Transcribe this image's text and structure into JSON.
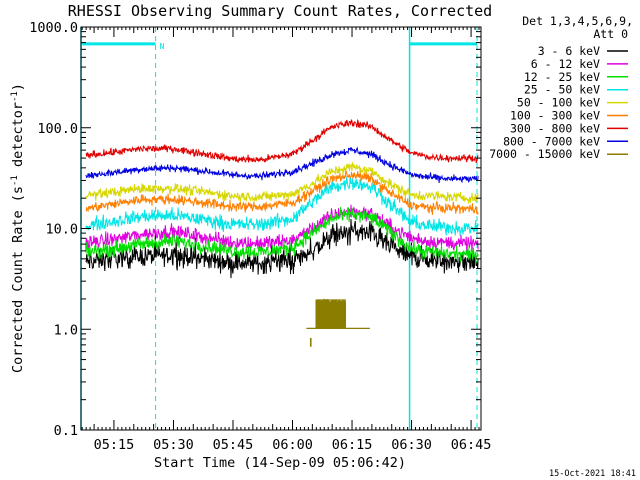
{
  "colors": {
    "background": "#ffffff",
    "axis": "#000000",
    "attenuator": "#00e5e5",
    "series": [
      "#000000",
      "#e000e0",
      "#00e000",
      "#00e5e5",
      "#d7d700",
      "#ff7f00",
      "#e00000",
      "#0000e0",
      "#8b7d00"
    ]
  },
  "chart_data": {
    "type": "line",
    "title": "RHESSI Observing Summary Count Rates, Corrected",
    "xlabel": "Start Time (14-Sep-09 05:06:42)",
    "ylabel_main": "Corrected Count Rate (s",
    "ylabel_sup1": "-1",
    "ylabel_mid": " detector",
    "ylabel_sup2": "-1",
    "ylabel_end": ")",
    "timestamp": "15-Oct-2021 18:41",
    "yscale": "log",
    "xlim_minutes": [
      306.7,
      407.5
    ],
    "ylim": [
      0.1,
      1000
    ],
    "x_ticks": [
      {
        "label": "05:15",
        "minute": 315
      },
      {
        "label": "05:30",
        "minute": 330
      },
      {
        "label": "05:45",
        "minute": 345
      },
      {
        "label": "06:00",
        "minute": 360
      },
      {
        "label": "06:15",
        "minute": 375
      },
      {
        "label": "06:30",
        "minute": 390
      },
      {
        "label": "06:45",
        "minute": 405
      }
    ],
    "y_ticks": [
      {
        "label": "0.1",
        "value": 0.1
      },
      {
        "label": "1.0",
        "value": 1
      },
      {
        "label": "10.0",
        "value": 10
      },
      {
        "label": "100.0",
        "value": 100
      },
      {
        "label": "1000.0",
        "value": 1000
      }
    ],
    "legend_header": [
      "Det 1,3,4,5,6,9,",
      "Att 0"
    ],
    "legend_placement": "right",
    "night_markers": [
      {
        "minute": 306.7,
        "style": "solid"
      },
      {
        "minute": 325.5,
        "style": "dashed"
      },
      {
        "minute": 389.5,
        "style": "solid"
      },
      {
        "minute": 406.5,
        "style": "dashed"
      }
    ],
    "attenuator_bars": [
      {
        "from": 307.0,
        "to": 325.5,
        "value": 680
      },
      {
        "from": 389.5,
        "to": 406.5,
        "value": 680
      }
    ],
    "flag_label": {
      "text": "N",
      "minute": 326.5,
      "value": 650
    },
    "series": [
      {
        "name": "3 - 6 keV",
        "color": "#000000",
        "noise": 0.07,
        "x": [
          307,
          315,
          322,
          330,
          338,
          345,
          352,
          360,
          365,
          370,
          375,
          380,
          385,
          390,
          395,
          400,
          407
        ],
        "y": [
          4.6,
          5.0,
          5.3,
          5.5,
          5.0,
          4.6,
          4.5,
          4.8,
          6.0,
          8.3,
          9.5,
          8.8,
          6.5,
          5.2,
          4.8,
          4.7,
          4.6
        ]
      },
      {
        "name": "6 - 12 keV",
        "color": "#e000e0",
        "noise": 0.05,
        "x": [
          307,
          315,
          322,
          330,
          338,
          345,
          352,
          360,
          365,
          370,
          375,
          380,
          385,
          390,
          395,
          400,
          407
        ],
        "y": [
          7.0,
          7.8,
          8.8,
          9.3,
          8.2,
          7.3,
          7.1,
          7.6,
          10.0,
          13.5,
          15.0,
          13.8,
          10.3,
          8.0,
          7.4,
          7.2,
          7.0
        ]
      },
      {
        "name": "12 - 25 keV",
        "color": "#00e000",
        "noise": 0.05,
        "x": [
          307,
          315,
          322,
          330,
          338,
          345,
          352,
          360,
          365,
          370,
          375,
          380,
          385,
          390,
          395,
          400,
          407
        ],
        "y": [
          5.8,
          6.3,
          7.0,
          7.5,
          6.7,
          6.0,
          5.8,
          6.5,
          9.0,
          12.5,
          14.0,
          12.8,
          9.0,
          6.3,
          5.8,
          5.6,
          5.5
        ]
      },
      {
        "name": "25 - 50 keV",
        "color": "#00e5e5",
        "noise": 0.05,
        "x": [
          307,
          315,
          322,
          330,
          338,
          345,
          352,
          360,
          365,
          370,
          375,
          380,
          385,
          390,
          395,
          400,
          407
        ],
        "y": [
          10.5,
          11.8,
          13.2,
          13.5,
          12.2,
          11.0,
          11.0,
          12.5,
          18.5,
          26.0,
          29.0,
          26.0,
          17.0,
          11.5,
          10.5,
          10.2,
          10.0
        ]
      },
      {
        "name": "50 - 100 keV",
        "color": "#d7d700",
        "noise": 0.035,
        "x": [
          307,
          315,
          322,
          330,
          338,
          345,
          352,
          360,
          365,
          370,
          375,
          380,
          385,
          390,
          395,
          400,
          407
        ],
        "y": [
          21,
          23,
          25,
          25,
          23,
          21,
          20.5,
          22,
          28,
          37,
          41,
          37,
          27,
          21.5,
          21,
          20.5,
          20
        ]
      },
      {
        "name": "100 - 300 keV",
        "color": "#ff7f00",
        "noise": 0.035,
        "x": [
          307,
          315,
          322,
          330,
          338,
          345,
          352,
          360,
          365,
          370,
          375,
          380,
          385,
          390,
          395,
          400,
          407
        ],
        "y": [
          15.5,
          17.5,
          19.5,
          19.5,
          18,
          16.5,
          16.5,
          18,
          23.5,
          31,
          34.5,
          31,
          22,
          17,
          16,
          16,
          15.5
        ]
      },
      {
        "name": "300 - 800 keV",
        "color": "#e00000",
        "noise": 0.025,
        "x": [
          307,
          315,
          322,
          330,
          338,
          345,
          352,
          360,
          365,
          370,
          375,
          380,
          385,
          390,
          395,
          400,
          407
        ],
        "y": [
          53,
          57,
          62,
          62,
          55,
          49,
          48,
          55,
          75,
          102,
          113,
          102,
          74,
          56,
          51,
          50,
          50
        ]
      },
      {
        "name": "800 - 7000 keV",
        "color": "#0000e0",
        "noise": 0.025,
        "x": [
          307,
          315,
          322,
          330,
          338,
          345,
          352,
          360,
          365,
          370,
          375,
          380,
          385,
          390,
          395,
          400,
          407
        ],
        "y": [
          33,
          36,
          39,
          40,
          37,
          34,
          33,
          37,
          44,
          55,
          60,
          54,
          42,
          34,
          32,
          31,
          31
        ]
      },
      {
        "name": "7000 - 15000 keV",
        "color": "#8b7d00",
        "noise": 0,
        "x": [],
        "y": [],
        "burst": {
          "baseline": {
            "from": 363.5,
            "to": 379.5,
            "value": 1.02
          },
          "spikes": [
            {
              "from": 366.0,
              "to": 373.5,
              "low": 1.02,
              "high": 1.95
            }
          ],
          "low_segment": {
            "minute": 364.6,
            "from": 0.67,
            "to": 0.82
          }
        }
      }
    ]
  }
}
